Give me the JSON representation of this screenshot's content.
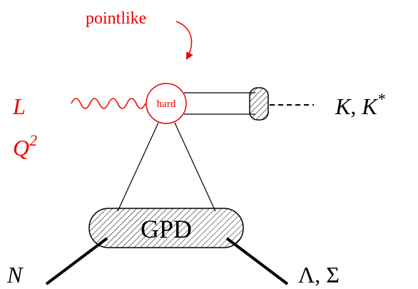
{
  "annotation": "pointlike",
  "vertex": "hard",
  "photon": {
    "polarization": "L",
    "virtuality": "Q",
    "virtuality_power": "2"
  },
  "meson": {
    "label": "K, K",
    "label_superscript": "*"
  },
  "blob": "GPD",
  "baryon_in": "N",
  "baryon_out": "Λ, Σ"
}
